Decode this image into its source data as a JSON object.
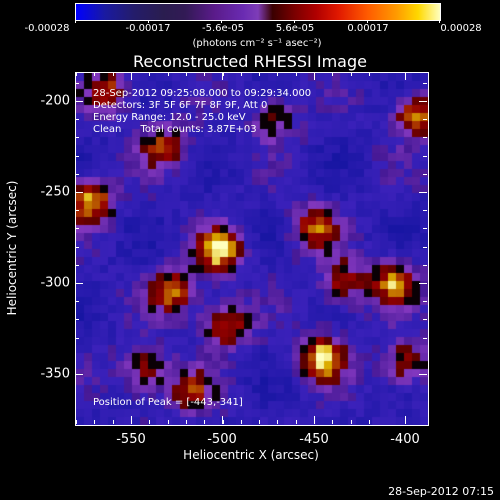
{
  "colorbar": {
    "ticks": [
      "-0.00028",
      "-0.00017",
      "-5.6e-05",
      "5.6e-05",
      "0.00017",
      "0.00028"
    ],
    "units": "(photons cm⁻² s⁻¹ asec⁻²)"
  },
  "title": "Reconstructed RHESSI Image",
  "overlay": {
    "line1": "28-Sep-2012 09:25:08.000 to 09:29:34.000",
    "line2": "Detectors: 3F 5F 6F 7F 8F 9F, Att 0",
    "line3": "Energy Range: 12.0 - 25.0 keV",
    "line4": "Clean      Total counts: 3.87E+03",
    "peak": "Position of Peak = [-443,-341]"
  },
  "axes": {
    "xlabel": "Heliocentric X (arcsec)",
    "ylabel": "Heliocentric Y (arcsec)",
    "xticks": [
      "-550",
      "-500",
      "-450",
      "-400"
    ],
    "yticks": [
      "-200",
      "-250",
      "-300",
      "-350"
    ]
  },
  "timestamp": "28-Sep-2012 07:15",
  "image": {
    "xrange": [
      -578,
      -386
    ],
    "yrange": [
      -378,
      -185
    ],
    "peak": [
      -443,
      -341
    ],
    "sources": [
      {
        "x": -500,
        "y": -282,
        "strength": 1.0
      },
      {
        "x": -443,
        "y": -341,
        "strength": 1.0
      },
      {
        "x": -570,
        "y": -255,
        "strength": 0.95
      },
      {
        "x": -497,
        "y": -323,
        "strength": 0.85
      },
      {
        "x": -525,
        "y": -305,
        "strength": 0.8
      },
      {
        "x": -540,
        "y": -348,
        "strength": 0.7
      },
      {
        "x": -448,
        "y": -270,
        "strength": 0.75
      },
      {
        "x": -432,
        "y": -300,
        "strength": 0.7
      },
      {
        "x": -404,
        "y": -300,
        "strength": 0.85
      },
      {
        "x": -392,
        "y": -208,
        "strength": 0.9
      },
      {
        "x": -398,
        "y": -345,
        "strength": 0.7
      },
      {
        "x": -560,
        "y": -195,
        "strength": 0.7
      },
      {
        "x": -530,
        "y": -225,
        "strength": 0.65
      },
      {
        "x": -470,
        "y": -210,
        "strength": 0.55
      },
      {
        "x": -515,
        "y": -360,
        "strength": 0.6
      }
    ],
    "colors": {
      "low": "#1414a0",
      "mid": "#5a1a9a",
      "dark": "#000000",
      "high": "#ffffc0"
    }
  }
}
